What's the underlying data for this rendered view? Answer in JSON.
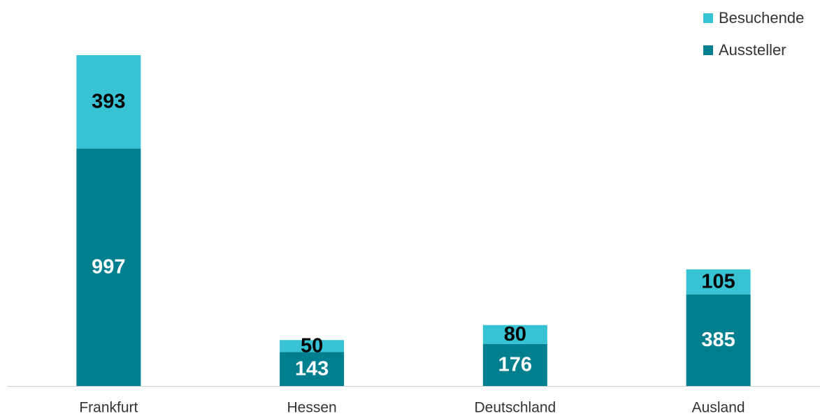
{
  "chart_data": {
    "type": "stacked_bar",
    "categories": [
      "Frankfurt",
      "Hessen",
      "Deutschland",
      "Ausland"
    ],
    "series": [
      {
        "name": "Aussteller",
        "color": "#007f8e",
        "values": [
          997,
          143,
          176,
          385
        ]
      },
      {
        "name": "Besuchende",
        "color": "#37c3d3",
        "values": [
          393,
          50,
          80,
          105
        ]
      }
    ],
    "legend": "top-right"
  }
}
